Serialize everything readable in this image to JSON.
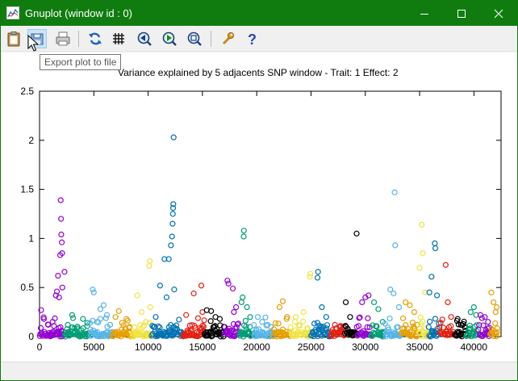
{
  "window": {
    "title": "Gnuplot (window id : 0)"
  },
  "toolbar": {
    "tooltip": "Export plot to file",
    "buttons": [
      {
        "name": "copy-to-clipboard-button",
        "icon": "clipboard-icon"
      },
      {
        "name": "export-plot-button",
        "icon": "export-icon"
      },
      {
        "name": "print-button",
        "icon": "printer-icon"
      },
      {
        "name": "replot-button",
        "icon": "refresh-icon"
      },
      {
        "name": "grid-button",
        "icon": "grid-icon"
      },
      {
        "name": "zoom-back-button",
        "icon": "zoom-previous-icon"
      },
      {
        "name": "zoom-forward-button",
        "icon": "zoom-next-icon"
      },
      {
        "name": "autoscale-button",
        "icon": "autoscale-icon"
      },
      {
        "name": "options-button",
        "icon": "wrench-icon"
      },
      {
        "name": "help-button",
        "icon": "help-icon"
      }
    ]
  },
  "chart_data": {
    "type": "scatter",
    "title": "Variance explained by 5 adjacents SNP window - Trait: 1 Effect: 2",
    "xlabel": "",
    "ylabel": "",
    "xlim": [
      0,
      42500
    ],
    "ylim": [
      0,
      2.5
    ],
    "xticks": [
      "0",
      "5000",
      "10000",
      "15000",
      "20000",
      "25000",
      "30000",
      "35000",
      "40000"
    ],
    "yticks": [
      "0",
      "0.5",
      "1",
      "1.5",
      "2",
      "2.5"
    ],
    "grid": false,
    "legend": "none",
    "marker": "open-circle",
    "palette": [
      "#9400d3",
      "#009e73",
      "#56b4e9",
      "#e69f00",
      "#f0e442",
      "#0072b2",
      "#e51e10",
      "#000000"
    ],
    "chromosomes": [
      {
        "start": 0,
        "end": 2300,
        "color": "#9400d3",
        "points": [
          [
            150,
            0.27
          ],
          [
            400,
            0.18
          ],
          [
            800,
            0.12
          ],
          [
            1200,
            0.15
          ],
          [
            1500,
            0.42
          ],
          [
            1600,
            0.46
          ],
          [
            1700,
            0.62
          ],
          [
            1800,
            0.4
          ],
          [
            1900,
            0.83
          ],
          [
            1950,
            1.39
          ],
          [
            1980,
            1.2
          ],
          [
            2000,
            1.04
          ],
          [
            2050,
            0.96
          ],
          [
            2080,
            0.85
          ],
          [
            2100,
            0.5
          ],
          [
            2300,
            0.66
          ]
        ]
      },
      {
        "start": 2300,
        "end": 4600,
        "color": "#009e73",
        "points": [
          [
            2600,
            0.12
          ],
          [
            3000,
            0.22
          ],
          [
            3500,
            0.1
          ],
          [
            4000,
            0.18
          ],
          [
            4400,
            0.14
          ]
        ]
      },
      {
        "start": 4600,
        "end": 6700,
        "color": "#56b4e9",
        "points": [
          [
            4900,
            0.48
          ],
          [
            5000,
            0.45
          ],
          [
            5300,
            0.15
          ],
          [
            5600,
            0.28
          ],
          [
            5900,
            0.32
          ],
          [
            6200,
            0.22
          ],
          [
            6500,
            0.12
          ]
        ]
      },
      {
        "start": 6700,
        "end": 8500,
        "color": "#e69f00",
        "points": [
          [
            7000,
            0.2
          ],
          [
            7300,
            0.26
          ],
          [
            7600,
            0.14
          ],
          [
            8000,
            0.18
          ],
          [
            8300,
            0.1
          ]
        ]
      },
      {
        "start": 8500,
        "end": 10300,
        "color": "#f0e442",
        "points": [
          [
            9000,
            0.42
          ],
          [
            9400,
            0.25
          ],
          [
            9800,
            0.15
          ],
          [
            10100,
            0.72
          ],
          [
            10150,
            0.77
          ],
          [
            10200,
            0.3
          ]
        ]
      },
      {
        "start": 10300,
        "end": 13200,
        "color": "#0072b2",
        "points": [
          [
            10700,
            0.2
          ],
          [
            11100,
            0.52
          ],
          [
            11500,
            0.79
          ],
          [
            11700,
            0.4
          ],
          [
            11900,
            0.79
          ],
          [
            12100,
            0.93
          ],
          [
            12200,
            1.02
          ],
          [
            12250,
            1.15
          ],
          [
            12280,
            1.25
          ],
          [
            12300,
            1.31
          ],
          [
            12320,
            1.35
          ],
          [
            12350,
            2.03
          ],
          [
            12400,
            0.48
          ]
        ]
      },
      {
        "start": 13200,
        "end": 15200,
        "color": "#e51e10",
        "points": [
          [
            13500,
            0.22
          ],
          [
            14200,
            0.44
          ],
          [
            14900,
            0.52
          ],
          [
            15000,
            0.25
          ]
        ]
      },
      {
        "start": 15200,
        "end": 17000,
        "color": "#000000",
        "points": [
          [
            15400,
            0.27
          ],
          [
            15800,
            0.26
          ],
          [
            16200,
            0.2
          ],
          [
            16600,
            0.18
          ]
        ]
      },
      {
        "start": 17000,
        "end": 18400,
        "color": "#9400d3",
        "points": [
          [
            17300,
            0.57
          ],
          [
            17400,
            0.54
          ],
          [
            17800,
            0.49
          ],
          [
            17900,
            0.25
          ],
          [
            18100,
            0.3
          ]
        ]
      },
      {
        "start": 18400,
        "end": 19700,
        "color": "#009e73",
        "points": [
          [
            18600,
            0.35
          ],
          [
            18700,
            0.4
          ],
          [
            18800,
            1.02
          ],
          [
            18820,
            1.08
          ],
          [
            19100,
            0.3
          ],
          [
            19400,
            0.2
          ]
        ]
      },
      {
        "start": 19700,
        "end": 21500,
        "color": "#56b4e9",
        "points": [
          [
            20100,
            0.2
          ],
          [
            20500,
            0.15
          ],
          [
            21000,
            0.12
          ],
          [
            21300,
            0.1
          ]
        ]
      },
      {
        "start": 21500,
        "end": 23100,
        "color": "#e69f00",
        "points": [
          [
            22100,
            0.3
          ],
          [
            22400,
            0.36
          ],
          [
            22800,
            0.2
          ]
        ]
      },
      {
        "start": 23100,
        "end": 25000,
        "color": "#f0e442",
        "points": [
          [
            23600,
            0.2
          ],
          [
            24300,
            0.25
          ],
          [
            24900,
            0.61
          ],
          [
            24950,
            0.64
          ]
        ]
      },
      {
        "start": 25000,
        "end": 26800,
        "color": "#0072b2",
        "points": [
          [
            25600,
            0.6
          ],
          [
            25650,
            0.66
          ],
          [
            26000,
            0.3
          ],
          [
            26400,
            0.2
          ]
        ]
      },
      {
        "start": 26800,
        "end": 28100,
        "color": "#e51e10",
        "points": [
          [
            27200,
            0.12
          ],
          [
            27700,
            0.1
          ]
        ]
      },
      {
        "start": 28100,
        "end": 29200,
        "color": "#000000",
        "points": [
          [
            28200,
            0.35
          ],
          [
            28600,
            0.2
          ],
          [
            29200,
            1.05
          ]
        ]
      },
      {
        "start": 29200,
        "end": 30500,
        "color": "#9400d3",
        "points": [
          [
            29700,
            0.35
          ],
          [
            30000,
            0.4
          ],
          [
            30300,
            0.42
          ]
        ]
      },
      {
        "start": 30500,
        "end": 31800,
        "color": "#009e73",
        "points": [
          [
            30800,
            0.35
          ],
          [
            31200,
            0.28
          ],
          [
            31600,
            0.15
          ]
        ]
      },
      {
        "start": 31800,
        "end": 33300,
        "color": "#56b4e9",
        "points": [
          [
            32300,
            0.48
          ],
          [
            32600,
            0.44
          ],
          [
            32700,
            1.47
          ],
          [
            32750,
            0.93
          ],
          [
            33100,
            0.3
          ]
        ]
      },
      {
        "start": 33300,
        "end": 34900,
        "color": "#e69f00",
        "points": [
          [
            33700,
            0.35
          ],
          [
            34100,
            0.32
          ],
          [
            34500,
            0.25
          ]
        ]
      },
      {
        "start": 34900,
        "end": 35800,
        "color": "#f0e442",
        "points": [
          [
            35000,
            0.7
          ],
          [
            35200,
            1.14
          ],
          [
            35300,
            0.85
          ],
          [
            35500,
            0.45
          ]
        ]
      },
      {
        "start": 35800,
        "end": 36800,
        "color": "#0072b2",
        "points": [
          [
            35900,
            0.45
          ],
          [
            36100,
            0.61
          ],
          [
            36400,
            0.95
          ],
          [
            36450,
            0.9
          ],
          [
            36600,
            0.42
          ]
        ]
      },
      {
        "start": 36800,
        "end": 38200,
        "color": "#e51e10",
        "points": [
          [
            37400,
            0.73
          ],
          [
            37600,
            0.35
          ],
          [
            37900,
            0.2
          ]
        ]
      },
      {
        "start": 38200,
        "end": 39300,
        "color": "#000000",
        "points": [
          [
            38500,
            0.18
          ],
          [
            38800,
            0.12
          ]
        ]
      },
      {
        "start": 39300,
        "end": 40400,
        "color": "#009e73",
        "points": [
          [
            39700,
            0.25
          ],
          [
            40000,
            0.3
          ],
          [
            40200,
            0.22
          ]
        ]
      },
      {
        "start": 40400,
        "end": 41500,
        "color": "#9400d3",
        "points": [
          [
            40600,
            0.22
          ],
          [
            41000,
            0.2
          ],
          [
            41300,
            0.15
          ]
        ]
      },
      {
        "start": 41500,
        "end": 42200,
        "color": "#e69f00",
        "points": [
          [
            41600,
            0.45
          ],
          [
            41800,
            0.35
          ],
          [
            42000,
            0.25
          ],
          [
            42100,
            0.3
          ]
        ]
      }
    ]
  }
}
